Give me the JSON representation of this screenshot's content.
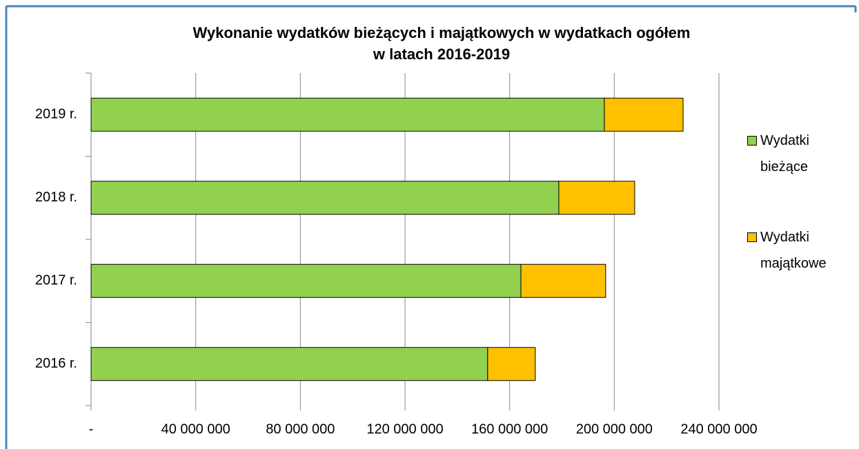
{
  "chart_data": {
    "type": "stacked-bar-horizontal",
    "title": [
      "Wykonanie wydatków bieżących i majątkowych w wydatkach ogółem",
      "w latach 2016-2019"
    ],
    "categories": [
      "2016 r.",
      "2017 r.",
      "2018 r.",
      "2019 r."
    ],
    "series": [
      {
        "name": "Wydatki bieżące",
        "color": "#92d050",
        "values": [
          151600000,
          164300000,
          178800000,
          196200000
        ]
      },
      {
        "name": "Wydatki majątkowe",
        "color": "#ffc000",
        "values": [
          18200000,
          32400000,
          29000000,
          30100000
        ]
      }
    ],
    "xlim": [
      0,
      240000000
    ],
    "xticks": [
      {
        "value": 0,
        "label": "-"
      },
      {
        "value": 40000000,
        "label": "40 000 000"
      },
      {
        "value": 80000000,
        "label": "80 000 000"
      },
      {
        "value": 120000000,
        "label": "120 000 000"
      },
      {
        "value": 160000000,
        "label": "160 000 000"
      },
      {
        "value": 200000000,
        "label": "200 000 000"
      },
      {
        "value": 240000000,
        "label": "240 000 000"
      }
    ],
    "grid": true,
    "legend": "right"
  }
}
